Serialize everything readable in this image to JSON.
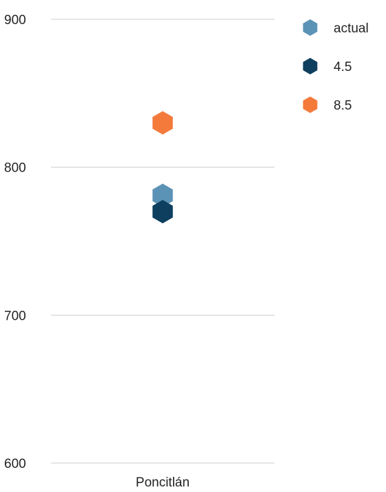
{
  "chart_data": {
    "type": "scatter",
    "title": "",
    "xlabel": "",
    "ylabel": "",
    "categories": [
      "Poncitlán"
    ],
    "y_ticks": [
      600,
      700,
      800,
      900
    ],
    "ylim": [
      600,
      900
    ],
    "grid": true,
    "legend_position": "right",
    "marker": "hexagon",
    "series": [
      {
        "name": "actual",
        "color": "#5b93b6",
        "values": [
          781
        ]
      },
      {
        "name": "4.5",
        "color": "#0e3f5e",
        "values": [
          770
        ]
      },
      {
        "name": "8.5",
        "color": "#f47a3c",
        "values": [
          830
        ]
      }
    ]
  }
}
